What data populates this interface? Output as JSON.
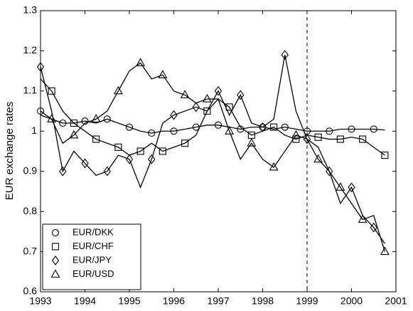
{
  "chart_data": {
    "type": "line",
    "ylabel": "EUR exchange rates",
    "x": [
      1993,
      1993.25,
      1993.5,
      1993.75,
      1994,
      1994.25,
      1994.5,
      1994.75,
      1995,
      1995.25,
      1995.5,
      1995.75,
      1996,
      1996.25,
      1996.5,
      1996.75,
      1997,
      1997.25,
      1997.5,
      1997.75,
      1998,
      1998.25,
      1998.5,
      1998.75,
      1999,
      1999.25,
      1999.5,
      1999.75,
      2000,
      2000.25,
      2000.5,
      2000.75
    ],
    "series": [
      {
        "name": "EUR/DKK",
        "color": "#000000",
        "marker": "circle",
        "values": [
          1.05,
          1.03,
          1.02,
          1.02,
          1.025,
          1.02,
          1.03,
          1.02,
          1.01,
          1.0,
          0.995,
          1.0,
          1.0,
          1.005,
          1.01,
          1.015,
          1.015,
          1.01,
          1.005,
          1.01,
          1.01,
          1.005,
          1.01,
          1.005,
          1.0,
          1.0,
          1.0,
          1.005,
          1.005,
          1.005,
          1.005,
          1.003
        ]
      },
      {
        "name": "EUR/CHF",
        "color": "#000000",
        "marker": "square",
        "values": [
          1.13,
          1.1,
          1.05,
          1.02,
          1.0,
          0.98,
          0.97,
          0.96,
          0.94,
          0.95,
          0.97,
          0.95,
          0.96,
          0.97,
          0.99,
          1.05,
          1.08,
          1.06,
          1.01,
          0.99,
          1.0,
          1.01,
          0.99,
          0.98,
          0.99,
          0.985,
          0.98,
          0.98,
          0.985,
          0.98,
          0.96,
          0.94
        ]
      },
      {
        "name": "EUR/JPY",
        "color": "#000000",
        "marker": "diamond",
        "values": [
          1.16,
          1.05,
          0.9,
          0.95,
          0.92,
          0.89,
          0.9,
          0.94,
          0.93,
          0.86,
          0.93,
          1.02,
          1.04,
          1.05,
          1.06,
          1.05,
          1.1,
          1.04,
          1.09,
          1.02,
          1.01,
          1.03,
          1.19,
          1.05,
          0.98,
          0.96,
          0.9,
          0.82,
          0.86,
          0.79,
          0.76,
          0.72
        ]
      },
      {
        "name": "EUR/USD",
        "color": "#000000",
        "marker": "triangle",
        "values": [
          1.04,
          1.03,
          0.97,
          0.99,
          1.02,
          1.03,
          1.05,
          1.1,
          1.15,
          1.17,
          1.13,
          1.14,
          1.1,
          1.09,
          1.07,
          1.08,
          1.08,
          1.0,
          0.93,
          0.97,
          0.93,
          0.91,
          0.95,
          0.99,
          0.98,
          0.93,
          0.9,
          0.86,
          0.82,
          0.78,
          0.79,
          0.7
        ]
      }
    ],
    "xlim": [
      1993,
      2001
    ],
    "xticks": [
      1993,
      1994,
      1995,
      1996,
      1997,
      1998,
      1999,
      2000,
      2001
    ],
    "ylim": [
      0.6,
      1.3
    ],
    "yticks": [
      0.6,
      0.7,
      0.8,
      0.9,
      1,
      1.1,
      1.2,
      1.3
    ],
    "vlines": [
      1999
    ],
    "grid": false,
    "legend": "lower left"
  }
}
